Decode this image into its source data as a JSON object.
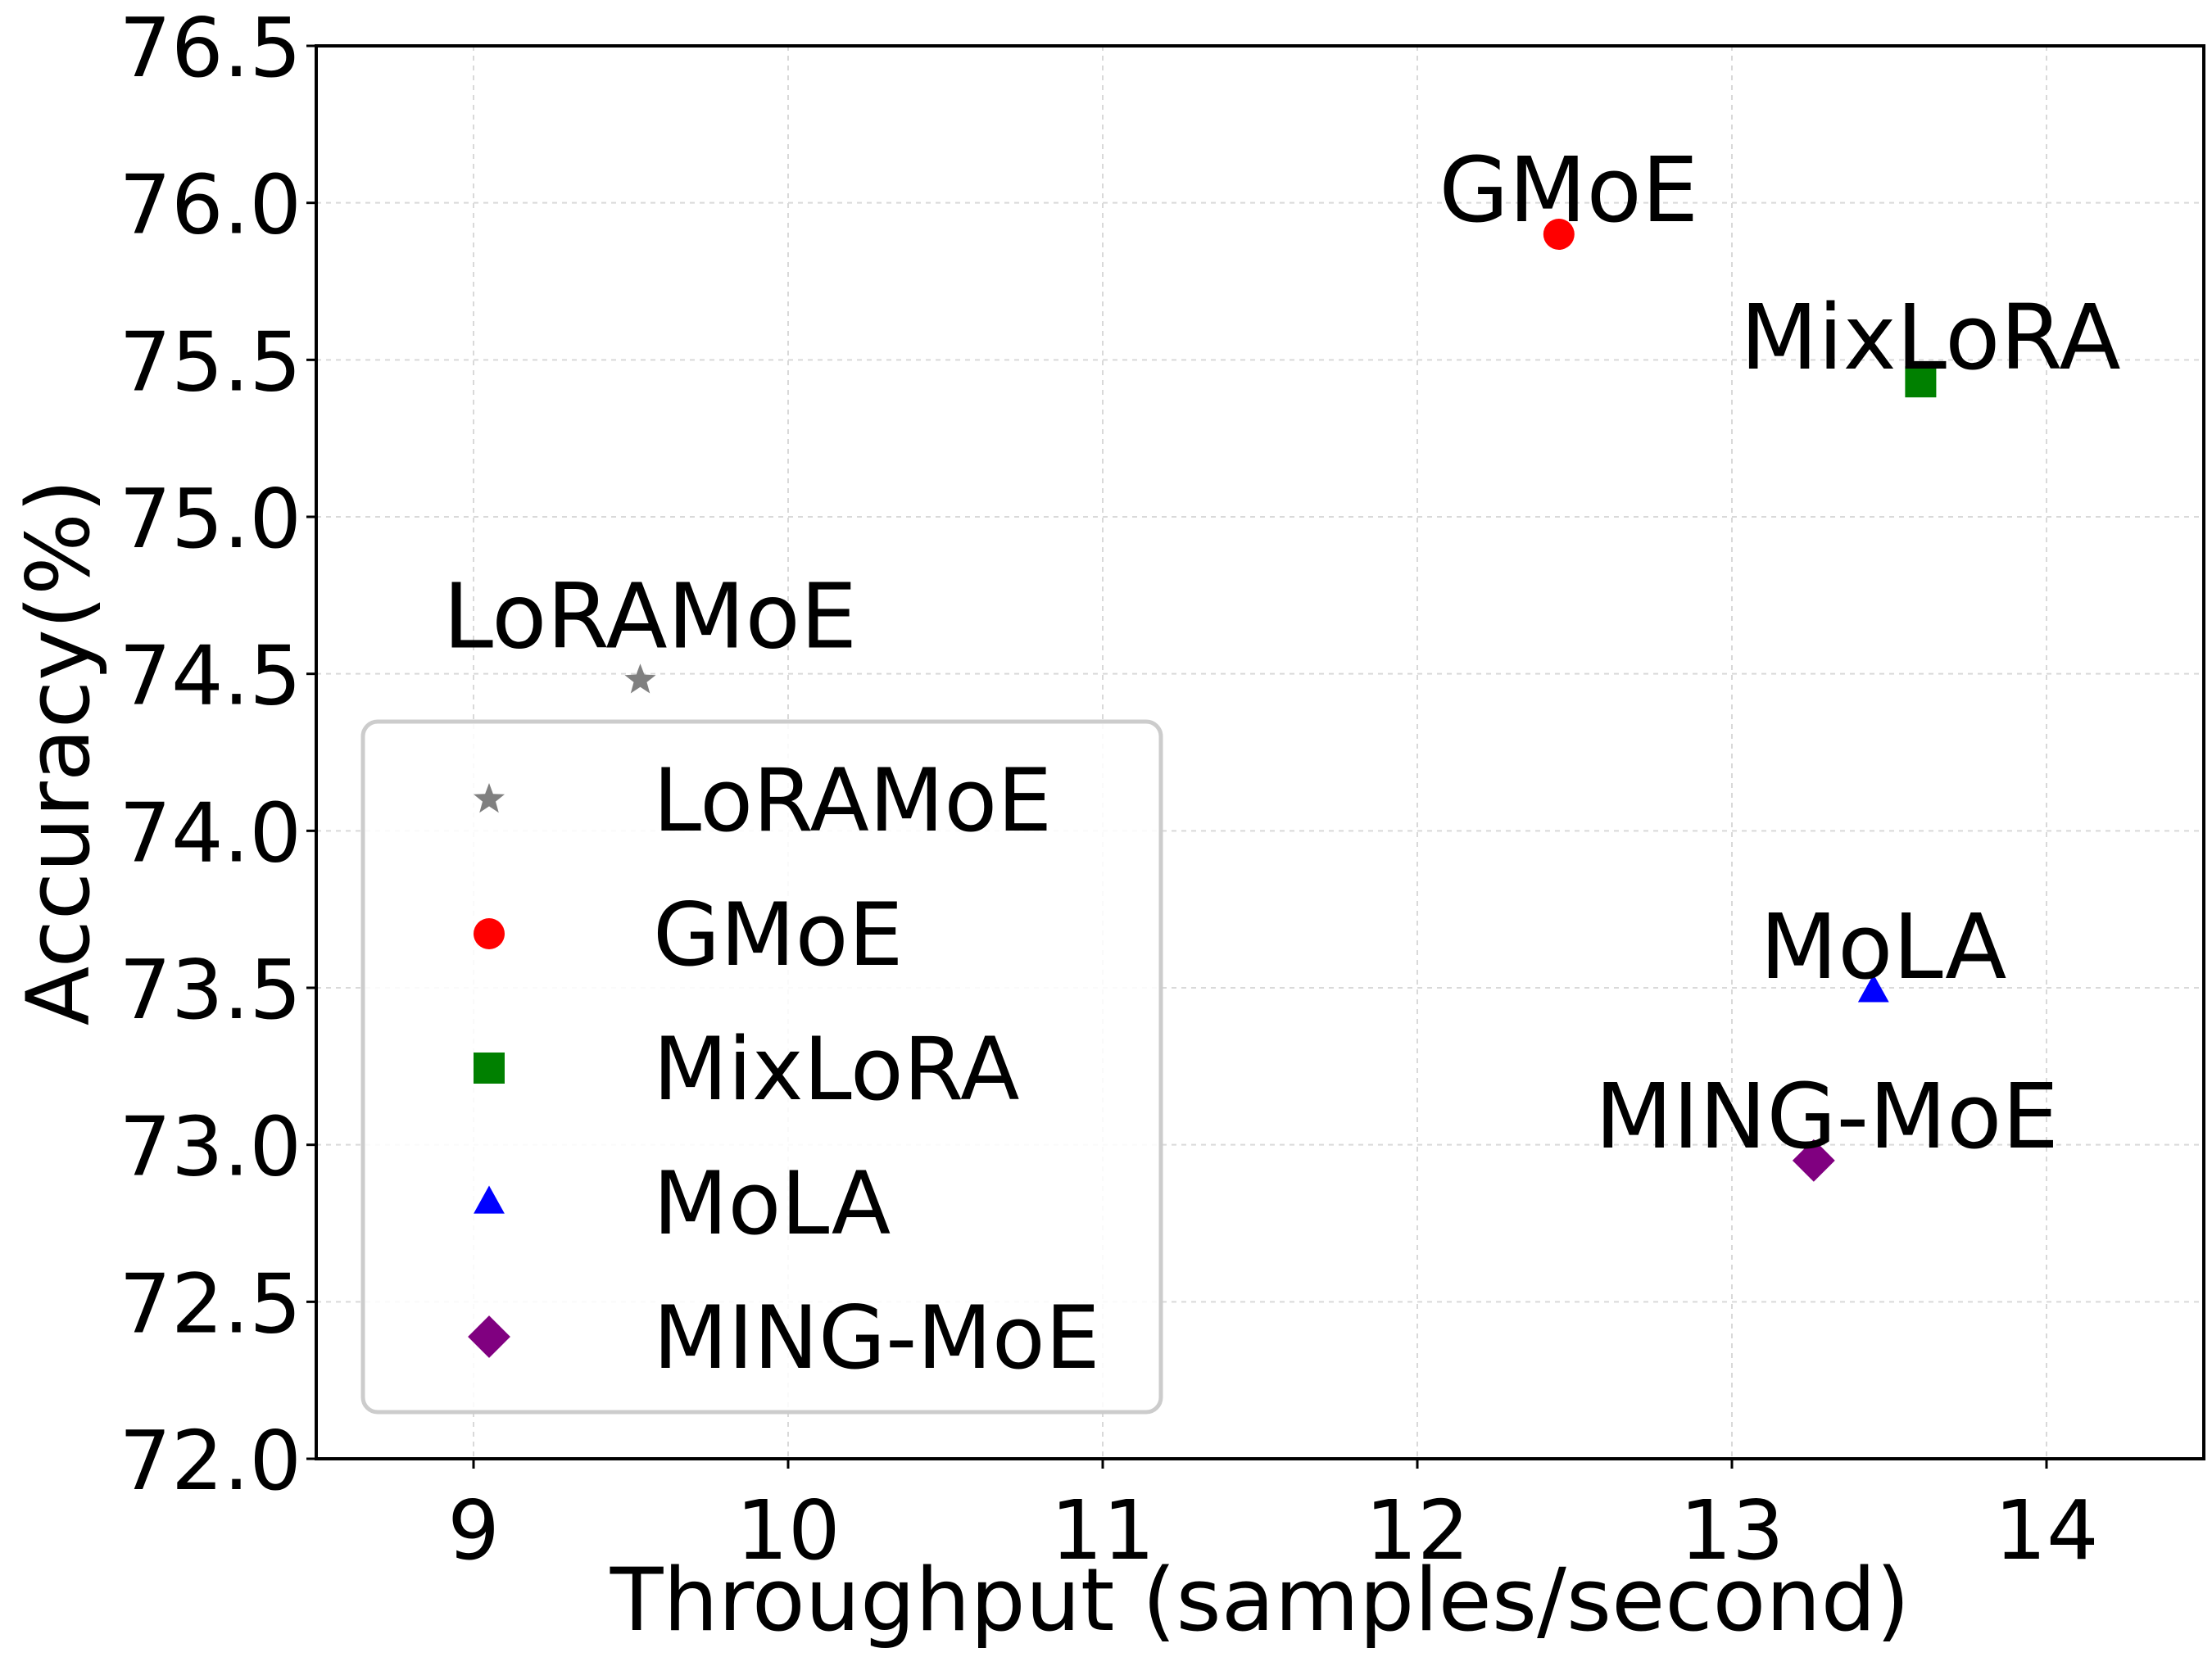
{
  "chart_data": {
    "type": "scatter",
    "title": "",
    "xlabel": "Throughput (samples/second)",
    "ylabel": "Accuracy(%)",
    "xlim": [
      8.5,
      14.5
    ],
    "ylim": [
      72.0,
      76.5
    ],
    "xticks": [
      9,
      10,
      11,
      12,
      13,
      14
    ],
    "xtick_labels": [
      "9",
      "10",
      "11",
      "12",
      "13",
      "14"
    ],
    "yticks": [
      72.0,
      72.5,
      73.0,
      73.5,
      74.0,
      74.5,
      75.0,
      75.5,
      76.0,
      76.5
    ],
    "ytick_labels": [
      "72.0",
      "72.5",
      "73.0",
      "73.5",
      "74.0",
      "74.5",
      "75.0",
      "75.5",
      "76.0",
      "76.5"
    ],
    "grid": true,
    "legend_position": "lower-left",
    "series": [
      {
        "name": "LoRAMoE",
        "x": 9.53,
        "y": 74.48,
        "marker": "star",
        "color": "#808080",
        "label": "LoRAMoE"
      },
      {
        "name": "GMoE",
        "x": 12.45,
        "y": 75.9,
        "marker": "circle",
        "color": "#ff0000",
        "label": "GMoE"
      },
      {
        "name": "MixLoRA",
        "x": 13.6,
        "y": 75.43,
        "marker": "square",
        "color": "#008000",
        "label": "MixLoRA"
      },
      {
        "name": "MoLA",
        "x": 13.45,
        "y": 73.49,
        "marker": "triangle",
        "color": "#0000ff",
        "label": "MoLA"
      },
      {
        "name": "MING-MoE",
        "x": 13.26,
        "y": 72.95,
        "marker": "diamond",
        "color": "#800080",
        "label": "MING-MoE"
      }
    ]
  }
}
